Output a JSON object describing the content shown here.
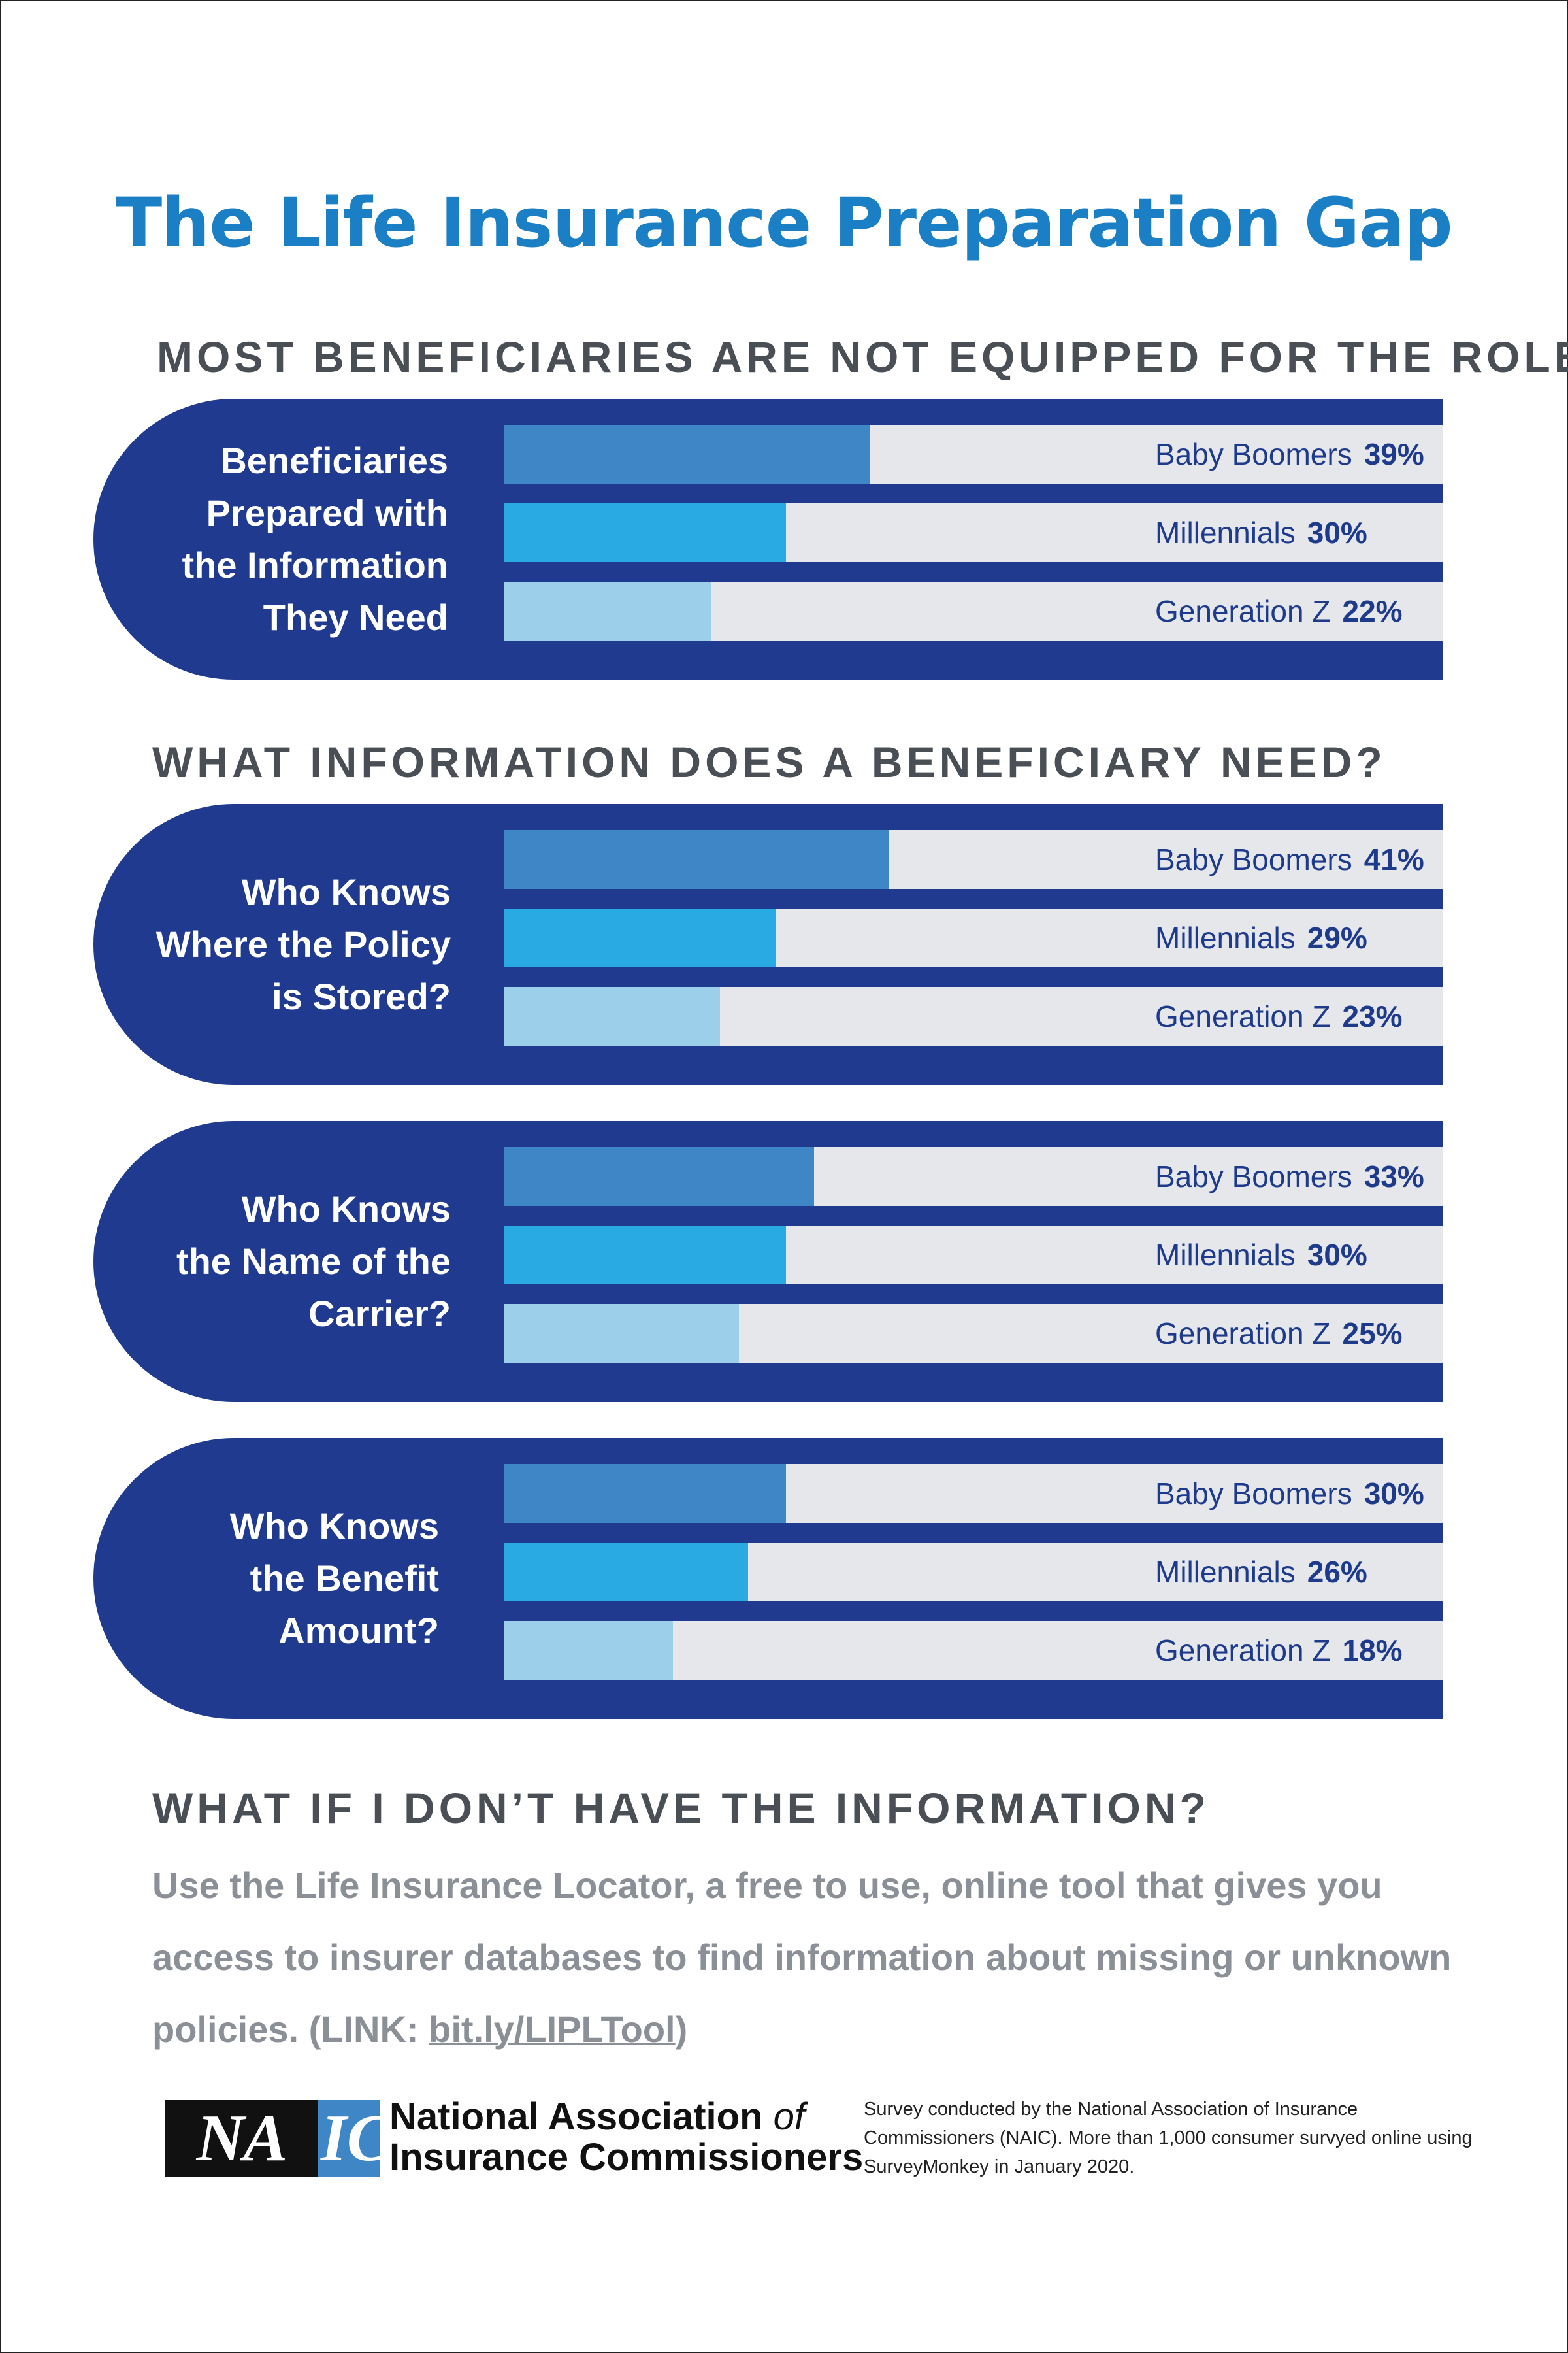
{
  "title": "The Life Insurance Preparation Gap",
  "sections": {
    "s1_heading": "MOST BENEFICIARIES ARE NOT EQUIPPED FOR THE ROLE",
    "s2_heading": "WHAT INFORMATION DOES A BENEFICIARY NEED?",
    "s3_heading": "WHAT IF I DON’T HAVE THE INFORMATION?"
  },
  "colors": {
    "title": "#1a7fc4",
    "pill": "#1f3a8f",
    "baby_boomers": "#3f86c7",
    "millennials": "#29aae2",
    "generation_z": "#9bcfea",
    "row_background": "#e5e7eb"
  },
  "chart_data": [
    {
      "type": "bar",
      "orientation": "horizontal",
      "title": "Beneficiaries Prepared with the Information They Need",
      "title_lines": [
        "Beneficiaries",
        "Prepared with",
        "the Information",
        "They Need"
      ],
      "categories": [
        "Baby Boomers",
        "Millennials",
        "Generation Z"
      ],
      "value_labels": [
        "39%",
        "30%",
        "22%"
      ],
      "values": [
        39,
        30,
        22
      ],
      "xlim": [
        0,
        100
      ]
    },
    {
      "type": "bar",
      "orientation": "horizontal",
      "title": "Who Knows Where the Policy is Stored?",
      "title_lines": [
        "Who Knows",
        "Where the Policy",
        "is Stored?"
      ],
      "categories": [
        "Baby Boomers",
        "Millennials",
        "Generation Z"
      ],
      "value_labels": [
        "41%",
        "29%",
        "23%"
      ],
      "values": [
        41,
        29,
        23
      ],
      "xlim": [
        0,
        100
      ]
    },
    {
      "type": "bar",
      "orientation": "horizontal",
      "title": "Who Knows the Name of the Carrier?",
      "title_lines": [
        "Who Knows",
        "the Name of the",
        "Carrier?"
      ],
      "categories": [
        "Baby Boomers",
        "Millennials",
        "Generation Z"
      ],
      "value_labels": [
        "33%",
        "30%",
        "25%"
      ],
      "values": [
        33,
        30,
        25
      ],
      "xlim": [
        0,
        100
      ]
    },
    {
      "type": "bar",
      "orientation": "horizontal",
      "title": "Who Knows the Benefit Amount?",
      "title_lines": [
        "Who Knows",
        "the Benefit",
        "Amount?"
      ],
      "categories": [
        "Baby Boomers",
        "Millennials",
        "Generation Z"
      ],
      "value_labels": [
        "30%",
        "26%",
        "18%"
      ],
      "values": [
        30,
        26,
        18
      ],
      "xlim": [
        0,
        100
      ]
    }
  ],
  "info": {
    "text": "Use the  Life Insurance Locator, a free to use, online tool that gives you access to insurer databases to find information about missing or unknown policies.  (LINK: ",
    "link": "bit.ly/LIPLTool",
    "close": ")"
  },
  "footer": {
    "logo_na": "NA",
    "logo_ic": "IC",
    "org_line1": "National Association",
    "org_of": "of",
    "org_line2": "Insurance Commissioners",
    "note": "Survey conducted by the  National Association of Insurance Commissioners (NAIC). More than 1,000 consumer survyed online using SurveyMonkey in January 2020."
  }
}
